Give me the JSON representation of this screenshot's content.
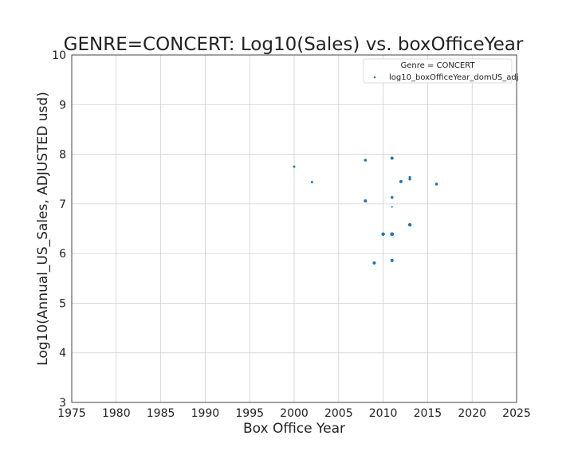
{
  "chart_data": {
    "type": "scatter",
    "title": "GENRE=CONCERT: Log10(Sales) vs. boxOfficeYear",
    "xlabel": "Box Office Year",
    "ylabel": "Log10(Annual_US_Sales, ADJUSTED usd)",
    "xlim": [
      1975,
      2025
    ],
    "ylim": [
      3,
      10
    ],
    "xticks": [
      "1975",
      "1980",
      "1985",
      "1990",
      "1995",
      "2000",
      "2005",
      "2010",
      "2015",
      "2020",
      "2025"
    ],
    "yticks": [
      "3",
      "4",
      "5",
      "6",
      "7",
      "8",
      "9",
      "10"
    ],
    "grid": true,
    "legend": {
      "title": "Genre = CONCERT",
      "placement": "top-right",
      "entries": [
        "log10_boxOfficeYear_domUS_adj"
      ]
    },
    "series": [
      {
        "name": "log10_boxOfficeYear_domUS_adj",
        "color": "#1f77b4",
        "points": [
          {
            "x": 2000,
            "y": 7.75,
            "s": 1.5
          },
          {
            "x": 2002,
            "y": 7.44,
            "s": 1.5
          },
          {
            "x": 2008,
            "y": 7.88,
            "s": 1.8
          },
          {
            "x": 2008,
            "y": 7.06,
            "s": 2.0
          },
          {
            "x": 2009,
            "y": 5.81,
            "s": 2.0
          },
          {
            "x": 2010,
            "y": 6.39,
            "s": 2.2
          },
          {
            "x": 2011,
            "y": 7.92,
            "s": 2.0
          },
          {
            "x": 2011,
            "y": 7.13,
            "s": 1.8
          },
          {
            "x": 2011,
            "y": 6.94,
            "s": 1.0
          },
          {
            "x": 2011,
            "y": 6.39,
            "s": 2.4
          },
          {
            "x": 2011,
            "y": 5.86,
            "s": 2.0
          },
          {
            "x": 2012,
            "y": 7.45,
            "s": 2.0
          },
          {
            "x": 2013,
            "y": 7.54,
            "s": 1.5
          },
          {
            "x": 2013,
            "y": 7.5,
            "s": 1.7
          },
          {
            "x": 2013,
            "y": 6.58,
            "s": 2.2
          },
          {
            "x": 2016,
            "y": 7.4,
            "s": 1.8
          }
        ]
      }
    ]
  }
}
